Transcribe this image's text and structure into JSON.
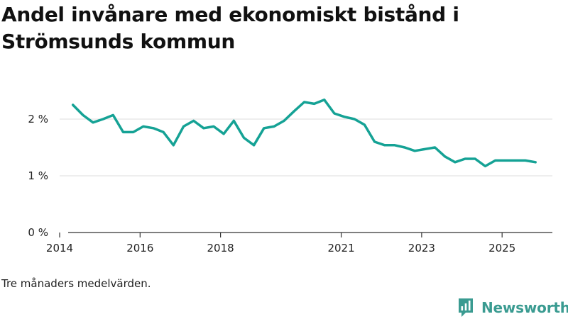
{
  "title": "Andel invånare med ekonomiskt bistånd i Strömsunds kommun",
  "note": "Tre månaders medelvärden.",
  "brand": {
    "name": "Newsworthy",
    "color": "#3a9b91"
  },
  "colors": {
    "line": "#15a295",
    "grid": "#dddddd",
    "axis": "#333333",
    "text": "#222222"
  },
  "chart_data": {
    "type": "line",
    "title": "Andel invånare med ekonomiskt bistånd i Strömsunds kommun",
    "xlabel": "",
    "ylabel": "",
    "xlim": [
      2014.0,
      2026.25
    ],
    "ylim": [
      0,
      2.6
    ],
    "grid": true,
    "y_ticks": [
      {
        "value": 0,
        "label": "0 %"
      },
      {
        "value": 1,
        "label": "1 %"
      },
      {
        "value": 2,
        "label": "2 %"
      }
    ],
    "x_ticks": [
      {
        "value": 2014,
        "label": "2014"
      },
      {
        "value": 2016,
        "label": "2016"
      },
      {
        "value": 2018,
        "label": "2018"
      },
      {
        "value": 2021,
        "label": "2021"
      },
      {
        "value": 2023,
        "label": "2023"
      },
      {
        "value": 2025,
        "label": "2025"
      }
    ],
    "series": [
      {
        "name": "Andel invånare med ekonomiskt bistånd",
        "unit": "%",
        "x": [
          2014.33,
          2014.58,
          2014.83,
          2015.08,
          2015.33,
          2015.58,
          2015.83,
          2016.08,
          2016.33,
          2016.58,
          2016.83,
          2017.08,
          2017.33,
          2017.58,
          2017.83,
          2018.08,
          2018.33,
          2018.58,
          2018.83,
          2019.08,
          2019.33,
          2019.58,
          2019.83,
          2020.08,
          2020.33,
          2020.58,
          2020.83,
          2021.08,
          2021.33,
          2021.58,
          2021.83,
          2022.08,
          2022.33,
          2022.58,
          2022.83,
          2023.08,
          2023.33,
          2023.58,
          2023.83,
          2024.08,
          2024.33,
          2024.58,
          2024.83,
          2025.08,
          2025.33,
          2025.58,
          2025.83
        ],
        "values": [
          2.25,
          2.07,
          1.94,
          2.0,
          2.07,
          1.77,
          1.77,
          1.87,
          1.84,
          1.77,
          1.54,
          1.87,
          1.97,
          1.84,
          1.87,
          1.74,
          1.97,
          1.67,
          1.54,
          1.84,
          1.87,
          1.97,
          2.14,
          2.3,
          2.27,
          2.34,
          2.1,
          2.04,
          2.0,
          1.9,
          1.6,
          1.54,
          1.54,
          1.5,
          1.44,
          1.47,
          1.5,
          1.34,
          1.24,
          1.3,
          1.3,
          1.17,
          1.27,
          1.27,
          1.27,
          1.27,
          1.24
        ]
      }
    ]
  }
}
